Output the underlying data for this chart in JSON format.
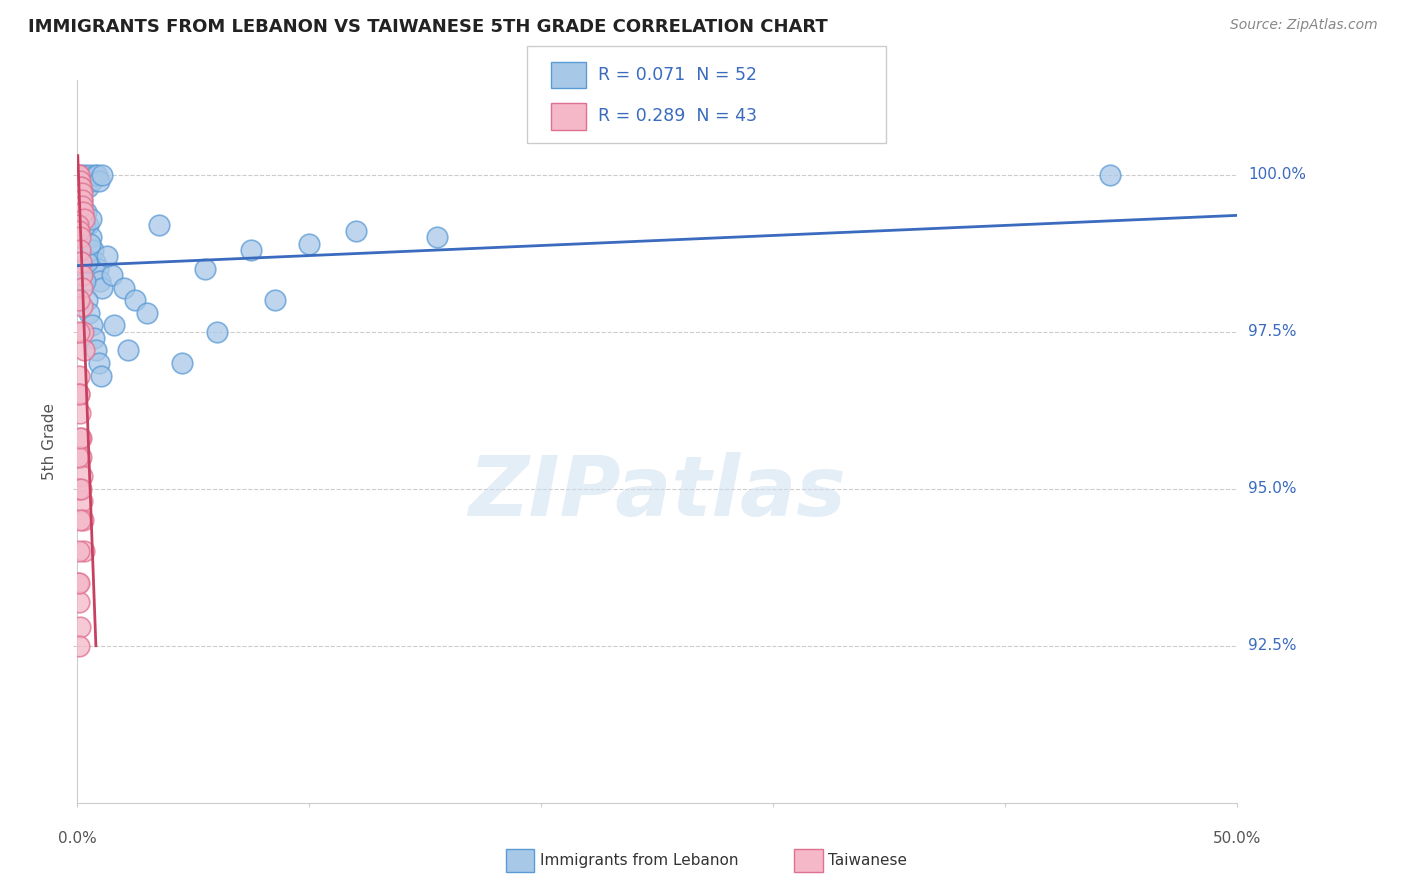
{
  "title": "IMMIGRANTS FROM LEBANON VS TAIWANESE 5TH GRADE CORRELATION CHART",
  "source": "Source: ZipAtlas.com",
  "ylabel": "5th Grade",
  "xmin": 0.0,
  "xmax": 50.0,
  "ymin": 90.0,
  "ymax": 101.5,
  "yticks": [
    92.5,
    95.0,
    97.5,
    100.0
  ],
  "ytick_labels": [
    "92.5%",
    "95.0%",
    "97.5%",
    "100.0%"
  ],
  "blue_color": "#a8c8e8",
  "blue_edge_color": "#5b9bd5",
  "blue_line_color": "#3a6bbf",
  "pink_color": "#f4b8c8",
  "pink_edge_color": "#e07090",
  "pink_line_color": "#c84060",
  "legend_blue_series": "Immigrants from Lebanon",
  "legend_pink_series": "Taiwanese",
  "watermark": "ZIPatlas",
  "blue_scatter_x": [
    0.15,
    0.25,
    0.35,
    0.45,
    0.55,
    0.65,
    0.75,
    0.85,
    0.95,
    1.05,
    0.18,
    0.28,
    0.38,
    0.48,
    0.58,
    0.68,
    0.78,
    0.88,
    0.98,
    1.08,
    0.12,
    0.22,
    0.32,
    0.42,
    0.52,
    0.62,
    0.72,
    0.82,
    0.92,
    1.02,
    1.5,
    2.0,
    2.5,
    3.0,
    4.5,
    5.5,
    7.5,
    10.0,
    12.0,
    3.5,
    6.0,
    15.5,
    44.5,
    2.2,
    8.5,
    1.3,
    1.6,
    0.42,
    0.55,
    0.35,
    0.2,
    0.6
  ],
  "blue_scatter_y": [
    100.0,
    99.9,
    100.0,
    99.8,
    100.0,
    99.9,
    100.0,
    100.0,
    99.9,
    100.0,
    99.5,
    99.3,
    99.4,
    99.2,
    99.0,
    98.8,
    98.6,
    98.5,
    98.3,
    98.2,
    98.8,
    98.5,
    98.3,
    98.0,
    97.8,
    97.6,
    97.4,
    97.2,
    97.0,
    96.8,
    98.4,
    98.2,
    98.0,
    97.8,
    97.0,
    98.5,
    98.8,
    98.9,
    99.1,
    99.2,
    97.5,
    99.0,
    100.0,
    97.2,
    98.0,
    98.7,
    97.6,
    98.6,
    98.9,
    99.2,
    99.6,
    99.3
  ],
  "pink_scatter_x": [
    0.05,
    0.08,
    0.1,
    0.12,
    0.15,
    0.18,
    0.2,
    0.22,
    0.25,
    0.28,
    0.05,
    0.08,
    0.1,
    0.12,
    0.15,
    0.18,
    0.2,
    0.22,
    0.25,
    0.28,
    0.06,
    0.09,
    0.11,
    0.14,
    0.16,
    0.19,
    0.21,
    0.24,
    0.27,
    0.05,
    0.08,
    0.1,
    0.07,
    0.09,
    0.06,
    0.05,
    0.08,
    0.1,
    0.07,
    0.09,
    0.06,
    0.12,
    0.15
  ],
  "pink_scatter_y": [
    100.0,
    100.0,
    99.9,
    99.8,
    99.8,
    99.7,
    99.6,
    99.5,
    99.4,
    99.3,
    99.2,
    99.1,
    99.0,
    98.8,
    98.6,
    98.4,
    98.2,
    97.9,
    97.5,
    97.2,
    96.8,
    96.5,
    96.2,
    95.8,
    95.5,
    95.2,
    94.8,
    94.5,
    94.0,
    93.5,
    93.2,
    92.8,
    98.0,
    97.5,
    96.5,
    95.5,
    95.0,
    94.5,
    94.0,
    93.5,
    92.5,
    95.8,
    95.0
  ],
  "blue_trend_x0": 0.0,
  "blue_trend_y0": 98.55,
  "blue_trend_x1": 50.0,
  "blue_trend_y1": 99.35,
  "pink_trend_x0": 0.02,
  "pink_trend_y0": 100.3,
  "pink_trend_x1": 0.8,
  "pink_trend_y1": 92.5
}
